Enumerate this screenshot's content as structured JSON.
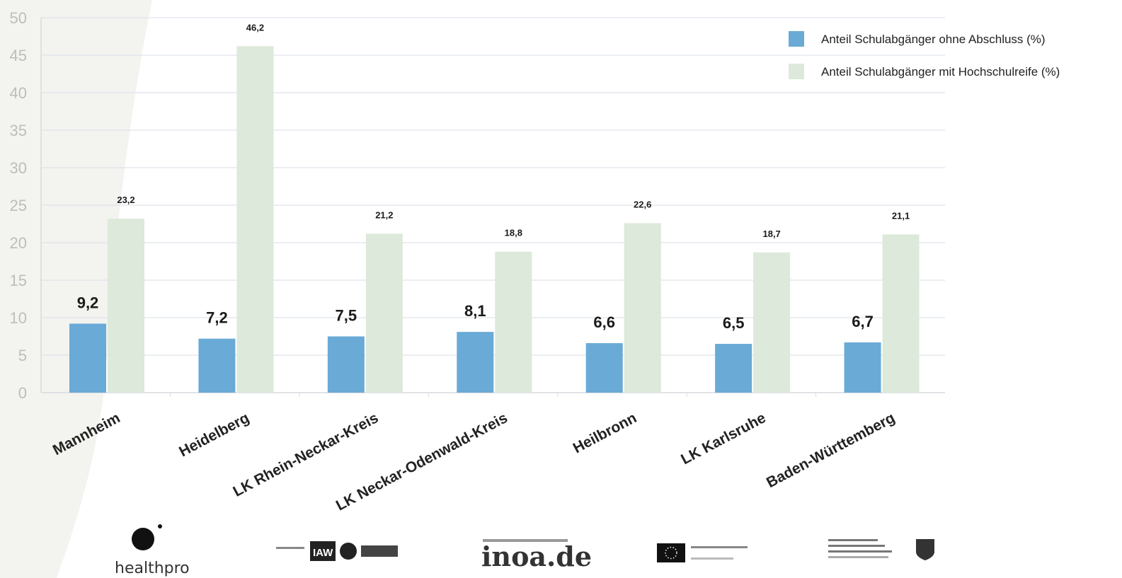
{
  "colors": {
    "series_a": "#6aaad6",
    "series_b": "#dde9da",
    "grid": "#dfe3ea",
    "axis": "#d8dbe0",
    "background_shape": "#f3f3ef"
  },
  "chart_data": {
    "type": "bar",
    "title": "",
    "xlabel": "",
    "ylabel": "",
    "ylim": [
      0,
      50
    ],
    "yticks": [
      0,
      5,
      10,
      15,
      20,
      25,
      30,
      35,
      40,
      45,
      50
    ],
    "grid": true,
    "legend_position": "top-right",
    "categories": [
      "Mannheim",
      "Heidelberg",
      "LK Rhein-Neckar-Kreis",
      "LK Neckar-Odenwald-Kreis",
      "Heilbronn",
      "LK Karlsruhe",
      "Baden-Württemberg"
    ],
    "series": [
      {
        "name": "Anteil Schulabgänger ohne Abschluss (%)",
        "values": [
          9.2,
          7.2,
          7.5,
          8.1,
          6.6,
          6.5,
          6.7
        ],
        "labels": [
          "9,2",
          "7,2",
          "7,5",
          "8,1",
          "6,6",
          "6,5",
          "6,7"
        ]
      },
      {
        "name": "Anteil Schulabgänger mit Hochschulreife (%)",
        "values": [
          23.2,
          46.2,
          21.2,
          18.8,
          22.6,
          18.7,
          21.1
        ],
        "labels": [
          "23,2",
          "46,2",
          "21,2",
          "18,8",
          "22,6",
          "18,7",
          "21,1"
        ]
      }
    ]
  },
  "logos": [
    {
      "name": "healthpro",
      "text": "healthpro"
    },
    {
      "name": "iaw-rwth",
      "text": "IAW"
    },
    {
      "name": "inoa",
      "text": "inoa.de"
    },
    {
      "name": "eu",
      "text": ""
    },
    {
      "name": "nrw-ministry",
      "text": ""
    }
  ]
}
